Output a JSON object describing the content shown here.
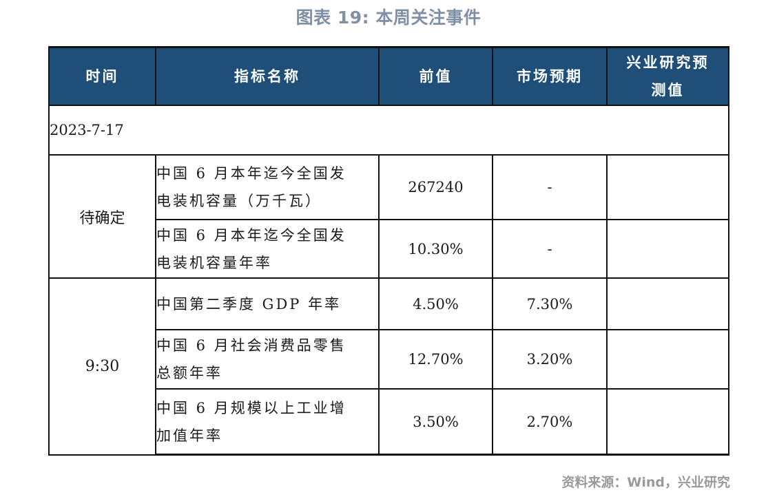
{
  "title": "图表 19: 本周关注事件",
  "table": {
    "headers": {
      "time": "时间",
      "indicator": "指标名称",
      "previous": "前值",
      "consensus": "市场预期",
      "forecast_line1": "兴业研究预",
      "forecast_line2": "测值"
    },
    "date": "2023-7-17",
    "groups": [
      {
        "time": "待确定",
        "rows": [
          {
            "indicator_line1": "中国 6 月本年迄今全国发",
            "indicator_line2": "电装机容量（万千瓦）",
            "previous": "267240",
            "consensus": "-",
            "forecast": ""
          },
          {
            "indicator_line1": "中国 6 月本年迄今全国发",
            "indicator_line2": "电装机容量年率",
            "previous": "10.30%",
            "consensus": "-",
            "forecast": ""
          }
        ]
      },
      {
        "time": "9:30",
        "rows": [
          {
            "indicator_line1": "中国第二季度 GDP 年率",
            "indicator_line2": "",
            "previous": "4.50%",
            "consensus": "7.30%",
            "forecast": ""
          },
          {
            "indicator_line1": "中国 6 月社会消费品零售",
            "indicator_line2": "总额年率",
            "previous": "12.70%",
            "consensus": "3.20%",
            "forecast": ""
          },
          {
            "indicator_line1": "中国 6 月规模以上工业增",
            "indicator_line2": "加值年率",
            "previous": "3.50%",
            "consensus": "2.70%",
            "forecast": ""
          }
        ]
      }
    ]
  },
  "source": "资料来源：Wind，兴业研究",
  "colors": {
    "header_bg": "#1f4e79",
    "header_text": "#ffffff",
    "title_text": "#7f8fa6",
    "source_text": "#9a9a9a"
  }
}
